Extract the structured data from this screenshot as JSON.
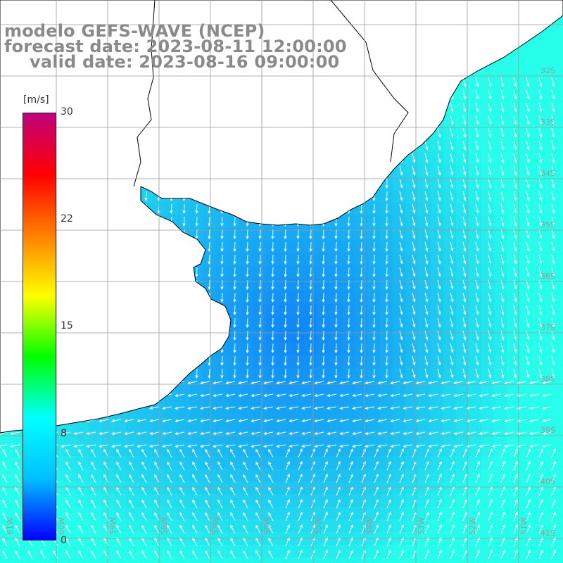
{
  "title": {
    "line1": "modelo GEFS-WAVE (NCEP)",
    "line2": "forecast date: 2023-08-11 12:00:00",
    "line3": "valid date: 2023-08-16 09:00:00"
  },
  "colorbar": {
    "unit": "[m/s]",
    "ticks": [
      "30",
      "22",
      "15",
      "8",
      "0"
    ],
    "tick_values": [
      30,
      22,
      15,
      8,
      0
    ],
    "range": [
      0,
      30
    ],
    "colors": [
      "#0000ff",
      "#00bfff",
      "#00ffff",
      "#00ff00",
      "#ffff00",
      "#ff8000",
      "#ff0000",
      "#c0007f"
    ]
  },
  "map": {
    "field": "wind speed and direction",
    "land_color": "#ffffff",
    "coastline_color": "#000000",
    "grid_color": "#9a9a9a",
    "lat_labels": [
      "32S",
      "33S",
      "34S",
      "35S",
      "36S",
      "37S",
      "38S",
      "39S",
      "40S",
      "41S"
    ],
    "lon_labels": [
      "61W",
      "60W",
      "59W",
      "58W",
      "57W",
      "56W",
      "55W",
      "54W",
      "53W",
      "52W",
      "51W"
    ]
  }
}
